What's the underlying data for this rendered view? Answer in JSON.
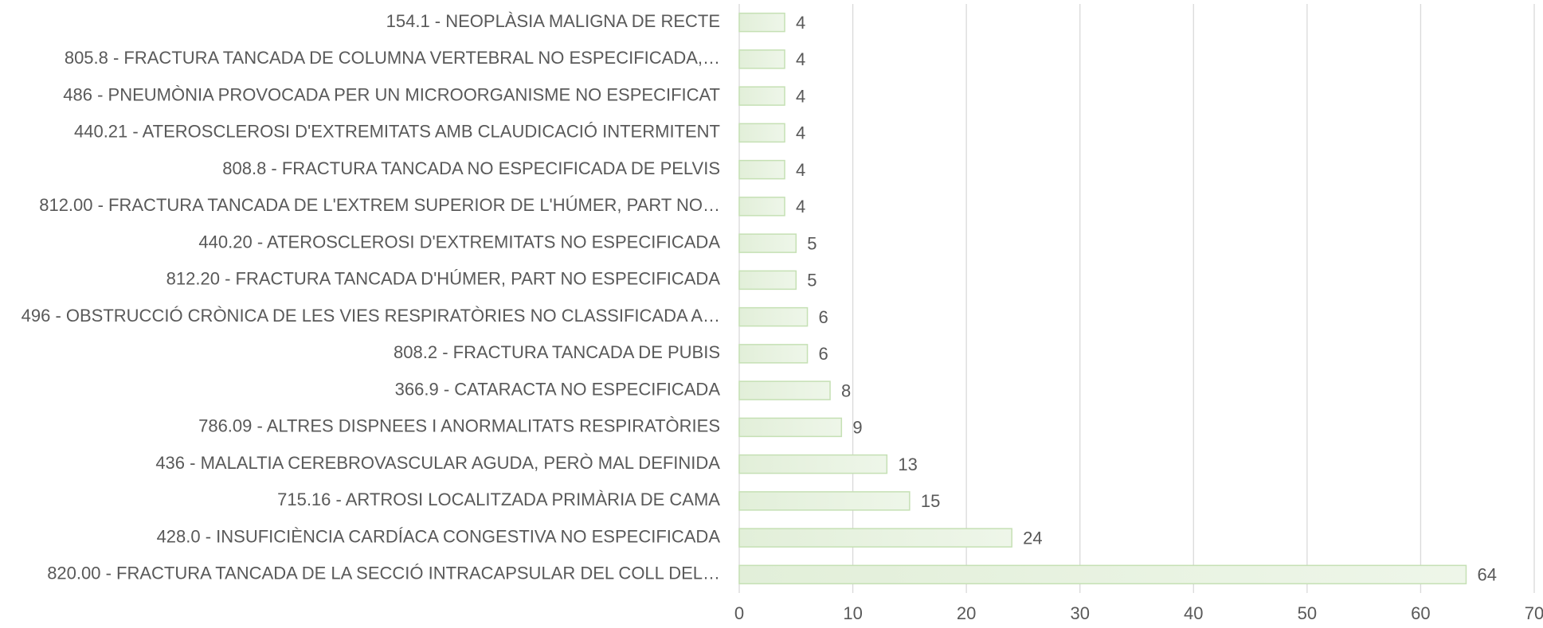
{
  "chart_data": {
    "type": "bar",
    "orientation": "horizontal",
    "categories": [
      "154.1 - NEOPLÀSIA MALIGNA DE RECTE",
      "805.8 - FRACTURA TANCADA DE COLUMNA VERTEBRAL NO ESPECIFICADA,…",
      "486 - PNEUMÒNIA PROVOCADA PER UN MICROORGANISME NO ESPECIFICAT",
      "440.21 - ATEROSCLEROSI D'EXTREMITATS AMB CLAUDICACIÓ INTERMITENT",
      "808.8 - FRACTURA TANCADA NO ESPECIFICADA DE PELVIS",
      "812.00 - FRACTURA TANCADA DE L'EXTREM SUPERIOR DE L'HÚMER, PART NO…",
      "440.20 - ATEROSCLEROSI D'EXTREMITATS NO ESPECIFICADA",
      "812.20 - FRACTURA TANCADA D'HÚMER, PART NO ESPECIFICADA",
      "496 - OBSTRUCCIÓ CRÒNICA DE LES VIES RESPIRATÒRIES NO CLASSIFICADA A…",
      "808.2 - FRACTURA TANCADA DE PUBIS",
      "366.9 - CATARACTA NO ESPECIFICADA",
      "786.09 - ALTRES DISPNEES I ANORMALITATS RESPIRATÒRIES",
      "436 - MALALTIA CEREBROVASCULAR AGUDA, PERÒ MAL DEFINIDA",
      "715.16 - ARTROSI LOCALITZADA PRIMÀRIA DE CAMA",
      "428.0 - INSUFICIÈNCIA CARDÍACA CONGESTIVA NO ESPECIFICADA",
      "820.00 - FRACTURA TANCADA DE LA SECCIÓ INTRACAPSULAR DEL COLL DEL…"
    ],
    "values": [
      4,
      4,
      4,
      4,
      4,
      4,
      5,
      5,
      6,
      6,
      8,
      9,
      13,
      15,
      24,
      64
    ],
    "color": "#e2efd9",
    "xlim": [
      0,
      70
    ],
    "xticks": [
      0,
      10,
      20,
      30,
      40,
      50,
      60,
      70
    ],
    "grid": true
  }
}
